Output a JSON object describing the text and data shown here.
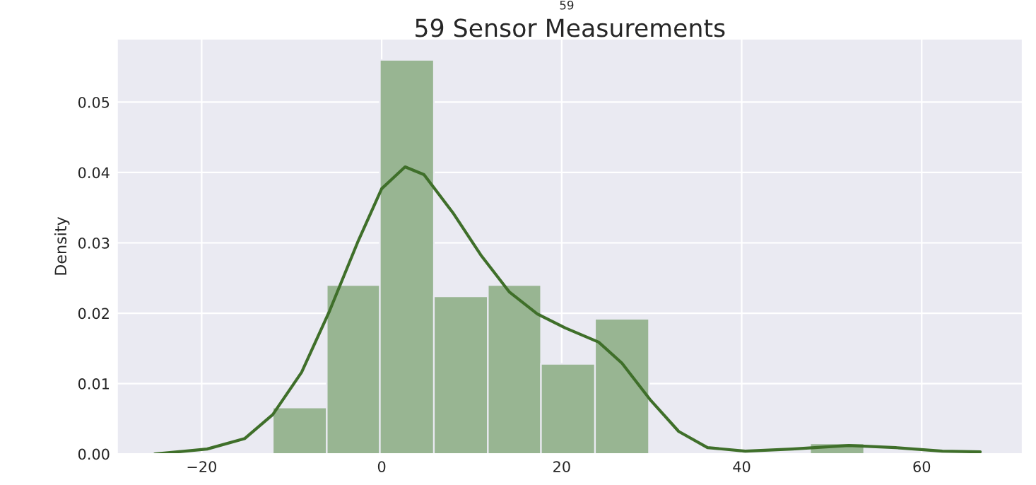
{
  "chart_data": {
    "type": "histogram",
    "title": "59 Sensor Measurements",
    "ylabel": "Density",
    "annotations": [
      "59"
    ],
    "bins": [
      -12.1,
      -6.1,
      -0.2,
      5.8,
      11.8,
      17.7,
      23.7,
      29.7,
      35.7,
      41.6,
      47.6,
      53.6
    ],
    "values": [
      0.0066,
      0.024,
      0.056,
      0.0224,
      0.024,
      0.0128,
      0.0192,
      0,
      0,
      0,
      0.0015
    ],
    "color": "#98b592",
    "series": [
      {
        "type": "line",
        "color": "#3f6f2a",
        "x": [
          -25.2,
          -19.4,
          -15.2,
          -12.1,
          -8.9,
          -5.8,
          -2.6,
          0,
          2.6,
          4.7,
          7.9,
          11.0,
          14.2,
          17.3,
          20.4,
          24.1,
          26.7,
          29.9,
          33.0,
          36.2,
          40.4,
          45.6,
          51.9,
          57.1,
          62.3,
          66.5
        ],
        "values": [
          0.0,
          0.0007,
          0.0022,
          0.0056,
          0.0116,
          0.0203,
          0.0303,
          0.0377,
          0.0408,
          0.0397,
          0.0343,
          0.0283,
          0.023,
          0.0199,
          0.0179,
          0.0159,
          0.0129,
          0.0076,
          0.0032,
          0.0009,
          0.0004,
          0.0007,
          0.0012,
          0.0009,
          0.0004,
          0.0003
        ]
      }
    ],
    "xlim": [
      -29.4,
      71.2
    ],
    "ylim": [
      0,
      0.059
    ],
    "xticks": [
      {
        "value": -20,
        "label": "−20"
      },
      0,
      20,
      40,
      60
    ],
    "yticks": [
      {
        "value": 0,
        "label": "0.00"
      },
      {
        "value": 0.01,
        "label": "0.01"
      },
      {
        "value": 0.02,
        "label": "0.02"
      },
      {
        "value": 0.03,
        "label": "0.03"
      },
      {
        "value": 0.04,
        "label": "0.04"
      },
      {
        "value": 0.05,
        "label": "0.05"
      }
    ],
    "grid": true
  }
}
